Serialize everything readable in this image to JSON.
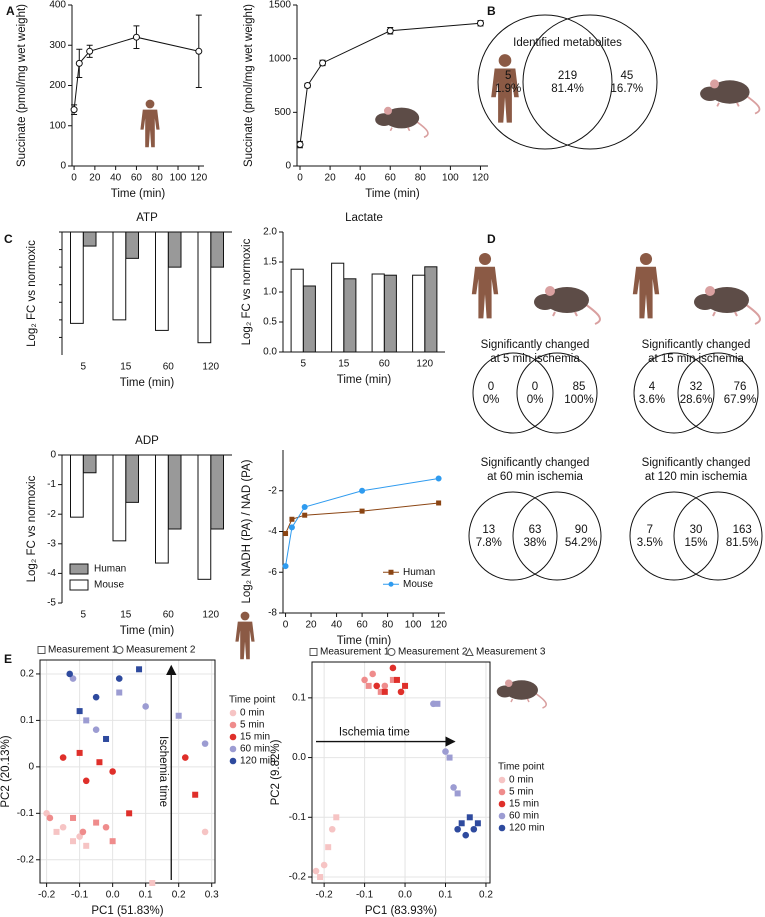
{
  "panels": [
    "A",
    "B",
    "C",
    "D",
    "E"
  ],
  "chart_data": [
    {
      "type": "line",
      "x": [
        0,
        5,
        15,
        60,
        120
      ],
      "values": [
        140,
        255,
        285,
        320,
        285
      ],
      "errors": [
        12,
        35,
        15,
        28,
        90
      ],
      "color": "#111111",
      "xlim": [
        -2,
        125
      ],
      "xticks": [
        0,
        20,
        40,
        60,
        80,
        100,
        120
      ],
      "ylim": [
        0,
        400
      ],
      "yticks": [
        0,
        100,
        200,
        300,
        400
      ],
      "xlabel": "Time (min)",
      "ylabel": "Succinate (pmol/mg wet weight)"
    },
    {
      "type": "line",
      "x": [
        0,
        5,
        15,
        60,
        120
      ],
      "values": [
        200,
        750,
        960,
        1260,
        1330
      ],
      "errors": [
        30,
        20,
        25,
        30,
        25
      ],
      "color": "#111111",
      "xlim": [
        -2,
        125
      ],
      "xticks": [
        0,
        20,
        40,
        60,
        80,
        100,
        120
      ],
      "ylim": [
        0,
        1500
      ],
      "yticks": [
        0,
        500,
        1000,
        1500
      ],
      "xlabel": "Time (min)",
      "ylabel": "Succinate (pmol/mg wet weight)"
    },
    {
      "type": "bar",
      "title": "ATP",
      "categories": [
        "5",
        "15",
        "60",
        "120"
      ],
      "series": [
        {
          "color": "#999999",
          "values": [
            -0.8,
            -1.5,
            -2.0,
            -2.0
          ]
        },
        {
          "color": "#ffffff",
          "values": [
            -5.2,
            -5.0,
            -5.6,
            -6.3
          ]
        }
      ],
      "ylim": [
        -7,
        0
      ],
      "xlabel": "Time (min)",
      "ylabel": "Log₂ FC vs normoxic"
    },
    {
      "type": "bar",
      "title": "Lactate",
      "categories": [
        "5",
        "15",
        "60",
        "120"
      ],
      "series": [
        {
          "color": "#999999",
          "values": [
            1.1,
            1.22,
            1.28,
            1.42
          ]
        },
        {
          "color": "#ffffff",
          "values": [
            1.38,
            1.48,
            1.3,
            1.28
          ]
        }
      ],
      "ylim": [
        0,
        2
      ],
      "yticks": [
        {
          "value": 0,
          "label": "0.0"
        },
        0.5,
        {
          "value": 1,
          "label": "1.0"
        },
        1.5,
        {
          "value": 2,
          "label": "2.0"
        }
      ],
      "xlabel": "Time (min)",
      "ylabel": "Log₂ FC vs normoxic"
    },
    {
      "type": "bar",
      "title": "ADP",
      "categories": [
        "5",
        "15",
        "60",
        "120"
      ],
      "series": [
        {
          "name": "Human",
          "color": "#999999",
          "values": [
            -0.6,
            -1.6,
            -2.5,
            -2.5
          ]
        },
        {
          "name": "Mouse",
          "color": "#ffffff",
          "values": [
            -2.1,
            -2.9,
            -3.65,
            -4.2
          ]
        }
      ],
      "ylim": [
        -5,
        0
      ],
      "yticks": [
        0,
        -1,
        -2,
        -3,
        -4,
        -5
      ],
      "xlabel": "Time (min)",
      "ylabel": "Log₂ FC vs normoxic"
    },
    {
      "type": "line",
      "x": [
        0,
        5,
        15,
        60,
        120
      ],
      "series": [
        {
          "name": "Human",
          "color": "#8b4513",
          "marker": "square",
          "values": [
            -4.1,
            -3.4,
            -3.2,
            -3.0,
            -2.6
          ]
        },
        {
          "name": "Mouse",
          "color": "#2f9bef",
          "marker": "circle",
          "values": [
            -5.7,
            -3.8,
            -2.8,
            -2.0,
            -1.4
          ]
        }
      ],
      "xlim": [
        -2,
        125
      ],
      "xticks": [
        0,
        20,
        40,
        60,
        80,
        100,
        120
      ],
      "ylim": [
        -8,
        0
      ],
      "yticks": [
        -2,
        -4,
        -6,
        -8
      ],
      "xlabel": "Time (min)",
      "ylabel": "Log₂ NADH (PA) / NAD (PA)"
    },
    {
      "type": "scatter",
      "markers": [
        "Measurement 1",
        "Measurement 2"
      ],
      "legend_title": "Time point",
      "annotation": "Ischemia time",
      "arrow": "vertical",
      "grid": true,
      "series": [
        {
          "name": "0 min",
          "color": "#f6c4c4",
          "x": [
            -0.2,
            -0.17,
            -0.15,
            -0.12,
            -0.1,
            -0.08,
            0.28,
            0.12
          ],
          "values": [
            -0.1,
            -0.14,
            -0.13,
            -0.16,
            -0.15,
            -0.17,
            -0.14,
            -0.25
          ]
        },
        {
          "name": "5 min",
          "color": "#ef8c8c",
          "x": [
            -0.19,
            -0.12,
            -0.09,
            -0.05,
            -0.02,
            0.0
          ],
          "values": [
            -0.11,
            -0.11,
            -0.14,
            -0.12,
            -0.13,
            -0.16
          ]
        },
        {
          "name": "15 min",
          "color": "#df2f2a",
          "x": [
            -0.15,
            -0.1,
            -0.08,
            -0.04,
            0.0,
            0.05,
            0.22,
            0.25
          ],
          "values": [
            0.02,
            0.03,
            -0.03,
            0.01,
            -0.01,
            -0.1,
            0.02,
            -0.06
          ]
        },
        {
          "name": "60 min",
          "color": "#9c9cd2",
          "x": [
            -0.12,
            -0.08,
            -0.05,
            0.02,
            0.1,
            0.2,
            0.28
          ],
          "values": [
            0.19,
            0.1,
            0.08,
            0.16,
            0.13,
            0.11,
            0.05
          ]
        },
        {
          "name": "120 min",
          "color": "#2e4a9e",
          "x": [
            -0.13,
            -0.1,
            -0.05,
            -0.02,
            0.02,
            0.08
          ],
          "values": [
            0.2,
            0.12,
            0.15,
            0.06,
            0.19,
            0.21
          ]
        }
      ],
      "xlim": [
        -0.22,
        0.31
      ],
      "xticks": [
        -0.2,
        -0.1,
        {
          "value": 0,
          "label": "0.0"
        },
        0.1,
        0.2,
        0.3
      ],
      "ylim": [
        -0.25,
        0.23
      ],
      "yticks": [
        -0.2,
        -0.1,
        0,
        0.1,
        0.2
      ],
      "xlabel": "PC1 (51.83%)",
      "ylabel": "PC2 (20.13%)"
    },
    {
      "type": "scatter",
      "markers": [
        "Measurement 1",
        "Measurement 2",
        "Measurement 3"
      ],
      "legend_title": "Time point",
      "annotation": "Ischemia time",
      "arrow": "horizontal",
      "grid": true,
      "series": [
        {
          "name": "0 min",
          "color": "#f6c4c4",
          "x": [
            -0.22,
            -0.21,
            -0.2,
            -0.19,
            -0.18,
            -0.17
          ],
          "values": [
            -0.19,
            -0.2,
            -0.18,
            -0.15,
            -0.12,
            -0.1
          ]
        },
        {
          "name": "5 min",
          "color": "#ef8c8c",
          "x": [
            -0.1,
            -0.09,
            -0.08,
            -0.06,
            -0.05,
            -0.03
          ],
          "values": [
            0.13,
            0.12,
            0.14,
            0.11,
            0.12,
            0.13
          ]
        },
        {
          "name": "15 min",
          "color": "#df2f2a",
          "x": [
            -0.07,
            -0.05,
            -0.03,
            -0.02,
            -0.01,
            0.0
          ],
          "values": [
            0.12,
            0.11,
            0.15,
            0.13,
            0.11,
            0.12
          ]
        },
        {
          "name": "60 min",
          "color": "#9c9cd2",
          "x": [
            0.07,
            0.08,
            0.1,
            0.11,
            0.12,
            0.13
          ],
          "values": [
            0.09,
            0.09,
            0.01,
            0.0,
            -0.05,
            -0.06
          ]
        },
        {
          "name": "120 min",
          "color": "#2e4a9e",
          "x": [
            0.13,
            0.14,
            0.15,
            0.16,
            0.17,
            0.18
          ],
          "values": [
            -0.12,
            -0.11,
            -0.13,
            -0.1,
            -0.12,
            -0.11
          ]
        }
      ],
      "xlim": [
        -0.23,
        0.21
      ],
      "xticks": [
        -0.2,
        -0.1,
        {
          "value": 0,
          "label": "0.0"
        },
        0.1,
        0.2
      ],
      "ylim": [
        -0.21,
        0.16
      ],
      "yticks": [
        -0.2,
        -0.1,
        {
          "value": 0,
          "label": "0.0"
        },
        0.1
      ],
      "xlabel": "PC1 (83.93%)",
      "ylabel": "PC2 (9.82%)"
    }
  ],
  "venns": [
    {
      "title": [
        "Identified metabolites"
      ],
      "left": [
        "5",
        "1.9%"
      ],
      "center": [
        "219",
        "81.4%"
      ],
      "right": [
        "45",
        "16.7%"
      ]
    },
    {
      "title": [
        "Significantly changed",
        "at 5 min ischemia"
      ],
      "left": [
        "0",
        "0%"
      ],
      "center": [
        "0",
        "0%"
      ],
      "right": [
        "85",
        "100%"
      ]
    },
    {
      "title": [
        "Significantly changed",
        "at 15 min ischemia"
      ],
      "left": [
        "4",
        "3.6%"
      ],
      "center": [
        "32",
        "28.6%"
      ],
      "right": [
        "76",
        "67.9%"
      ]
    },
    {
      "title": [
        "Significantly changed",
        "at 60 min ischemia"
      ],
      "left": [
        "13",
        "7.8%"
      ],
      "center": [
        "63",
        "38%"
      ],
      "right": [
        "90",
        "54.2%"
      ]
    },
    {
      "title": [
        "Significantly changed",
        "at 120 min ischemia"
      ],
      "left": [
        "7",
        "3.5%"
      ],
      "center": [
        "30",
        "15%"
      ],
      "right": [
        "163",
        "81.5%"
      ]
    }
  ]
}
